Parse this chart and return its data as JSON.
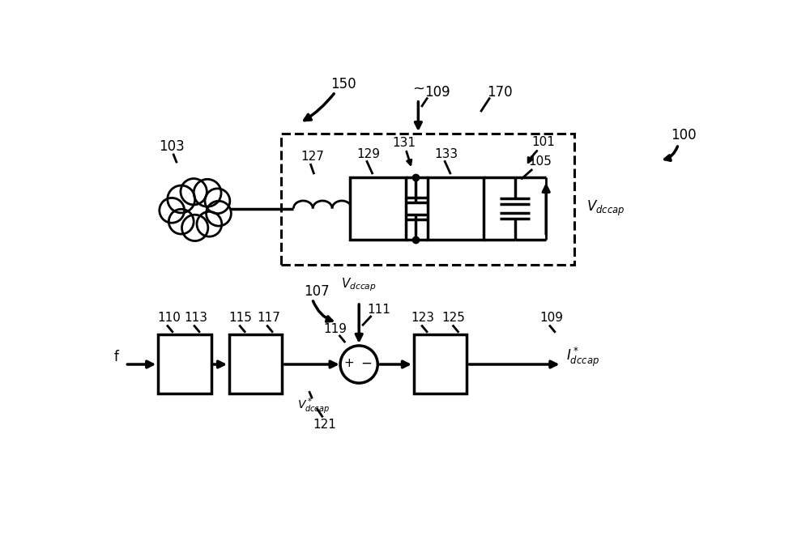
{
  "bg_color": "#ffffff",
  "lw_main": 2.0,
  "lw_thick": 2.5,
  "fig_width": 10.0,
  "fig_height": 6.83,
  "dpi": 100,
  "xlim": [
    0,
    10
  ],
  "ylim": [
    0,
    6.83
  ]
}
